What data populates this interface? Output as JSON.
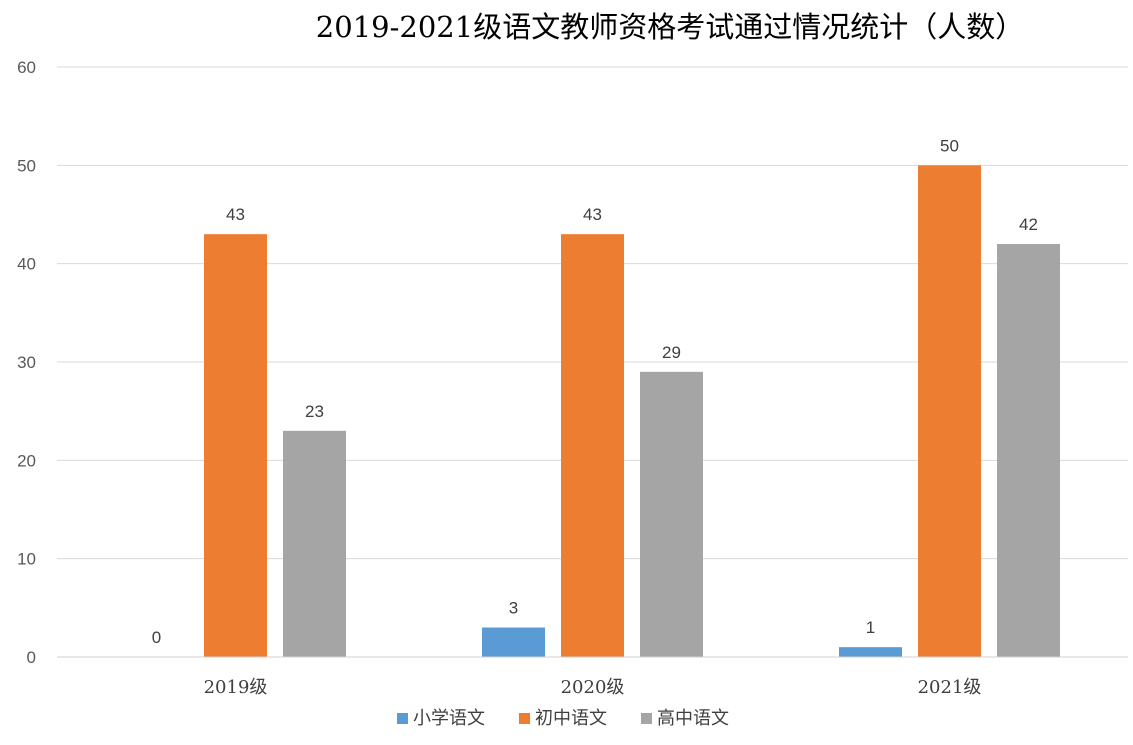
{
  "chart_data": {
    "type": "bar",
    "title": "2019-2021级语文教师资格考试通过情况统计（人数）",
    "categories": [
      "2019级",
      "2020级",
      "2021级"
    ],
    "series": [
      {
        "name": "小学语文",
        "values": [
          0,
          3,
          1
        ],
        "color": "#5b9bd5"
      },
      {
        "name": "初中语文",
        "values": [
          43,
          43,
          50
        ],
        "color": "#ed7d31"
      },
      {
        "name": "高中语文",
        "values": [
          23,
          29,
          42
        ],
        "color": "#a5a5a5"
      }
    ],
    "ylim": [
      0,
      60
    ],
    "yticks": [
      0,
      10,
      20,
      30,
      40,
      50,
      60
    ],
    "grid": true,
    "legend_position": "bottom",
    "show_data_labels": true
  }
}
